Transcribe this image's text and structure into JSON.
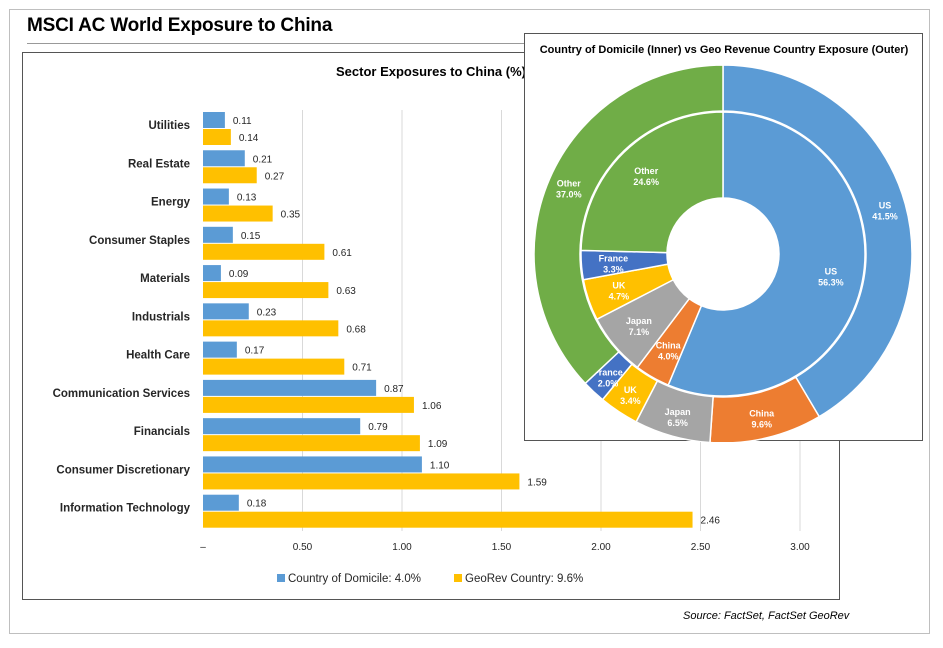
{
  "page": {
    "title": "MSCI AC World Exposure to China",
    "source": "Source: FactSet, FactSet GeoRev"
  },
  "colors": {
    "domicile": "#5b9bd5",
    "georev": "#ffc000",
    "grid": "#d9d9d9",
    "US": "#5b9bd5",
    "China": "#ed7d31",
    "Japan": "#a5a5a5",
    "UK": "#ffc000",
    "France": "#4472c4",
    "Other": "#70ad47"
  },
  "chart_data": [
    {
      "type": "bar",
      "orientation": "horizontal",
      "title": "Sector Exposures to China (%)",
      "categories": [
        "Utilities",
        "Real Estate",
        "Energy",
        "Consumer Staples",
        "Materials",
        "Industrials",
        "Health Care",
        "Communication Services",
        "Financials",
        "Consumer Discretionary",
        "Information Technology"
      ],
      "series": [
        {
          "name": "Country of Domicile: 4.0%",
          "values": [
            0.11,
            0.21,
            0.13,
            0.15,
            0.09,
            0.23,
            0.17,
            0.87,
            0.79,
            1.1,
            0.18
          ],
          "labels": [
            "0.11",
            "0.21",
            "0.13",
            "0.15",
            "0.09",
            "0.23",
            "0.17",
            "0.87",
            "0.79",
            "1.10",
            "0.18"
          ]
        },
        {
          "name": "GeoRev Country: 9.6%",
          "values": [
            0.14,
            0.27,
            0.35,
            0.61,
            0.63,
            0.68,
            0.71,
            1.06,
            1.09,
            1.59,
            2.46
          ],
          "labels": [
            "0.14",
            "0.27",
            "0.35",
            "0.61",
            "0.63",
            "0.68",
            "0.71",
            "1.06",
            "1.09",
            "1.59",
            "2.46"
          ]
        }
      ],
      "xlim": [
        0,
        3.0
      ],
      "xticks": [
        0,
        0.5,
        1.0,
        1.5,
        2.0,
        2.5,
        3.0
      ],
      "xtick_labels": [
        "–",
        "0.50",
        "1.00",
        "1.50",
        "2.00",
        "2.50",
        "3.00"
      ],
      "grid": true,
      "legend": "bottom"
    },
    {
      "type": "pie",
      "subtype": "donut",
      "title": "Country of Domicile (Inner) vs Geo Revenue Country Exposure (Outer)",
      "series": [
        {
          "name": "Inner",
          "slices": [
            {
              "name": "US",
              "value": 56.3,
              "label": "56.3%"
            },
            {
              "name": "China",
              "value": 4.0,
              "label": "4.0%"
            },
            {
              "name": "Japan",
              "value": 7.1,
              "label": "7.1%"
            },
            {
              "name": "UK",
              "value": 4.7,
              "label": "4.7%"
            },
            {
              "name": "France",
              "value": 3.3,
              "label": "3.3%"
            },
            {
              "name": "Other",
              "value": 24.6,
              "label": "24.6%"
            }
          ]
        },
        {
          "name": "Outer",
          "slices": [
            {
              "name": "US",
              "value": 41.5,
              "label": "41.5%"
            },
            {
              "name": "China",
              "value": 9.6,
              "label": "9.6%"
            },
            {
              "name": "Japan",
              "value": 6.5,
              "label": "6.5%"
            },
            {
              "name": "UK",
              "value": 3.4,
              "label": "3.4%"
            },
            {
              "name": "France",
              "value": 2.0,
              "label": "2.0%"
            },
            {
              "name": "Other",
              "value": 37.0,
              "label": "37.0%"
            }
          ]
        }
      ]
    }
  ]
}
